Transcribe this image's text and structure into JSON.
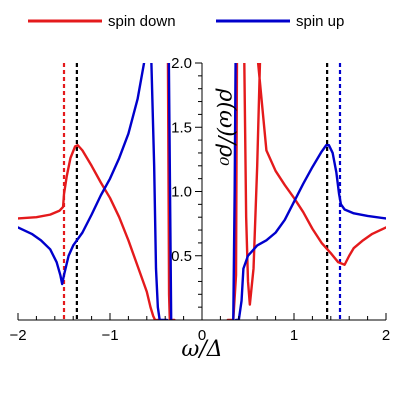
{
  "chart_data": {
    "type": "line",
    "xlabel": "ω/Δ",
    "ylabel": "ρ(ω)/ρ₀",
    "xlim": [
      -2,
      2
    ],
    "ylim": [
      0,
      2.0
    ],
    "x_ticks": [
      -2,
      -1,
      0,
      1,
      2
    ],
    "x_tick_labels": [
      "−2",
      "−1",
      "0",
      "1",
      "2"
    ],
    "y_ticks": [
      0.5,
      1.0,
      1.5,
      2.0
    ],
    "y_tick_labels": [
      "0.5",
      "1.0",
      "1.5",
      "2.0"
    ],
    "legend": {
      "placement": "top"
    },
    "series": [
      {
        "name": "spin down",
        "color": "#e41a1c",
        "points": [
          [
            -2.0,
            0.79
          ],
          [
            -1.8,
            0.8
          ],
          [
            -1.65,
            0.82
          ],
          [
            -1.55,
            0.85
          ],
          [
            -1.51,
            0.88
          ],
          [
            -1.5,
            0.98
          ],
          [
            -1.47,
            1.12
          ],
          [
            -1.43,
            1.26
          ],
          [
            -1.38,
            1.35
          ],
          [
            -1.35,
            1.36
          ],
          [
            -1.3,
            1.32
          ],
          [
            -1.2,
            1.2
          ],
          [
            -1.1,
            1.07
          ],
          [
            -1.0,
            0.95
          ],
          [
            -0.9,
            0.8
          ],
          [
            -0.8,
            0.62
          ],
          [
            -0.7,
            0.42
          ],
          [
            -0.6,
            0.22
          ],
          [
            -0.56,
            0.1
          ],
          [
            -0.53,
            0.03
          ],
          [
            -0.51,
            0.0
          ],
          null,
          [
            -0.49,
            0.0
          ],
          [
            -0.47,
            0.0
          ],
          null,
          [
            -0.37,
            2.0
          ],
          [
            -0.362,
            0.8
          ],
          [
            -0.358,
            0.2
          ],
          [
            -0.35,
            0.0
          ],
          [
            -0.3,
            0.0
          ],
          null,
          [
            0.28,
            0.0
          ],
          [
            0.34,
            0.0
          ],
          [
            0.37,
            0.35
          ],
          [
            0.375,
            1.2
          ],
          [
            0.38,
            2.0
          ],
          null,
          [
            0.46,
            2.0
          ],
          [
            0.48,
            0.8
          ],
          [
            0.5,
            0.3
          ],
          [
            0.52,
            0.12
          ],
          [
            0.56,
            0.4
          ],
          [
            0.6,
            1.2
          ],
          [
            0.63,
            2.0
          ],
          null,
          [
            0.61,
            2.0
          ],
          [
            0.7,
            1.32
          ],
          [
            0.8,
            1.16
          ],
          [
            0.9,
            1.05
          ],
          [
            1.0,
            0.95
          ],
          [
            1.1,
            0.84
          ],
          [
            1.2,
            0.71
          ],
          [
            1.3,
            0.6
          ],
          [
            1.4,
            0.52
          ],
          [
            1.48,
            0.45
          ],
          [
            1.55,
            0.43
          ],
          [
            1.6,
            0.5
          ],
          [
            1.65,
            0.56
          ],
          [
            1.75,
            0.62
          ],
          [
            1.85,
            0.67
          ],
          [
            2.0,
            0.72
          ]
        ]
      },
      {
        "name": "spin up",
        "color": "#0000cc",
        "points": [
          [
            -2.0,
            0.72
          ],
          [
            -1.85,
            0.67
          ],
          [
            -1.75,
            0.62
          ],
          [
            -1.65,
            0.55
          ],
          [
            -1.58,
            0.45
          ],
          [
            -1.54,
            0.35
          ],
          [
            -1.52,
            0.28
          ],
          [
            -1.5,
            0.35
          ],
          [
            -1.45,
            0.5
          ],
          [
            -1.4,
            0.58
          ],
          [
            -1.3,
            0.68
          ],
          [
            -1.2,
            0.82
          ],
          [
            -1.1,
            0.97
          ],
          [
            -1.0,
            1.1
          ],
          [
            -0.9,
            1.26
          ],
          [
            -0.8,
            1.45
          ],
          [
            -0.7,
            1.72
          ],
          [
            -0.63,
            2.0
          ],
          null,
          [
            -0.55,
            2.0
          ],
          [
            -0.52,
            1.2
          ],
          [
            -0.5,
            0.4
          ],
          [
            -0.48,
            0.1
          ],
          [
            -0.46,
            0.0
          ],
          [
            -0.38,
            0.0
          ],
          null,
          [
            -0.36,
            2.0
          ],
          [
            -0.345,
            0.8
          ],
          [
            -0.335,
            0.0
          ],
          null,
          [
            0.34,
            0.0
          ],
          [
            0.355,
            1.0
          ],
          [
            0.365,
            2.0
          ],
          null,
          [
            0.37,
            0.0
          ],
          [
            0.4,
            0.0
          ],
          [
            0.43,
            0.15
          ],
          [
            0.45,
            0.4
          ],
          [
            0.5,
            0.5
          ],
          [
            0.6,
            0.58
          ],
          [
            0.7,
            0.62
          ],
          [
            0.8,
            0.68
          ],
          [
            0.9,
            0.78
          ],
          [
            1.0,
            0.92
          ],
          [
            1.1,
            1.06
          ],
          [
            1.2,
            1.19
          ],
          [
            1.3,
            1.31
          ],
          [
            1.35,
            1.36
          ],
          [
            1.38,
            1.36
          ],
          [
            1.42,
            1.3
          ],
          [
            1.46,
            1.15
          ],
          [
            1.49,
            0.98
          ],
          [
            1.51,
            0.9
          ],
          [
            1.55,
            0.86
          ],
          [
            1.65,
            0.83
          ],
          [
            1.8,
            0.81
          ],
          [
            2.0,
            0.79
          ]
        ]
      }
    ],
    "reference_lines": [
      {
        "x": -1.5,
        "color": "#e41a1c",
        "style": "dashed"
      },
      {
        "x": -1.36,
        "color": "#000000",
        "style": "dashed"
      },
      {
        "x": 1.36,
        "color": "#000000",
        "style": "dashed"
      },
      {
        "x": 1.5,
        "color": "#0000cc",
        "style": "dashed"
      }
    ]
  }
}
